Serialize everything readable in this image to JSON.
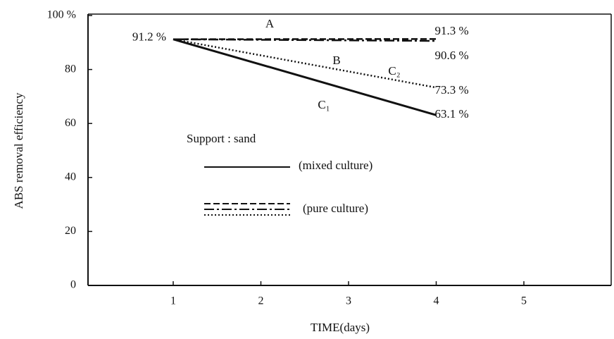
{
  "chart_data": {
    "type": "line",
    "y_label": "ABS removal efficiency",
    "x_label": "TIME(days)",
    "x": [
      1,
      4
    ],
    "series": [
      {
        "name": "A",
        "color": "#111111",
        "style": "dashed",
        "values": [
          91.2,
          91.3
        ],
        "value_labels": [
          null,
          "91.3 %"
        ]
      },
      {
        "name": "B",
        "color": "#111111",
        "style": "dashdot",
        "values": [
          91.2,
          90.6
        ],
        "value_labels": [
          null,
          "90.6 %"
        ]
      },
      {
        "name": "C₂",
        "color": "#111111",
        "style": "dotted",
        "values": [
          91.2,
          73.3
        ],
        "value_labels": [
          null,
          "73.3 %"
        ]
      },
      {
        "name": "C₁",
        "color": "#111111",
        "style": "solid",
        "values": [
          91.2,
          63.1
        ],
        "value_labels": [
          "91.2 %",
          "63.1 %"
        ]
      }
    ],
    "xlim": [
      0,
      6
    ],
    "xticks": [
      1,
      2,
      3,
      4,
      5
    ],
    "ylim": [
      0,
      100
    ],
    "yticks": [
      0,
      20,
      40,
      60,
      80,
      {
        "value": 100,
        "label": "100 %"
      }
    ],
    "legend": {
      "title": "Support : sand",
      "items": [
        "(mixed culture)",
        "(pure culture)"
      ]
    }
  }
}
